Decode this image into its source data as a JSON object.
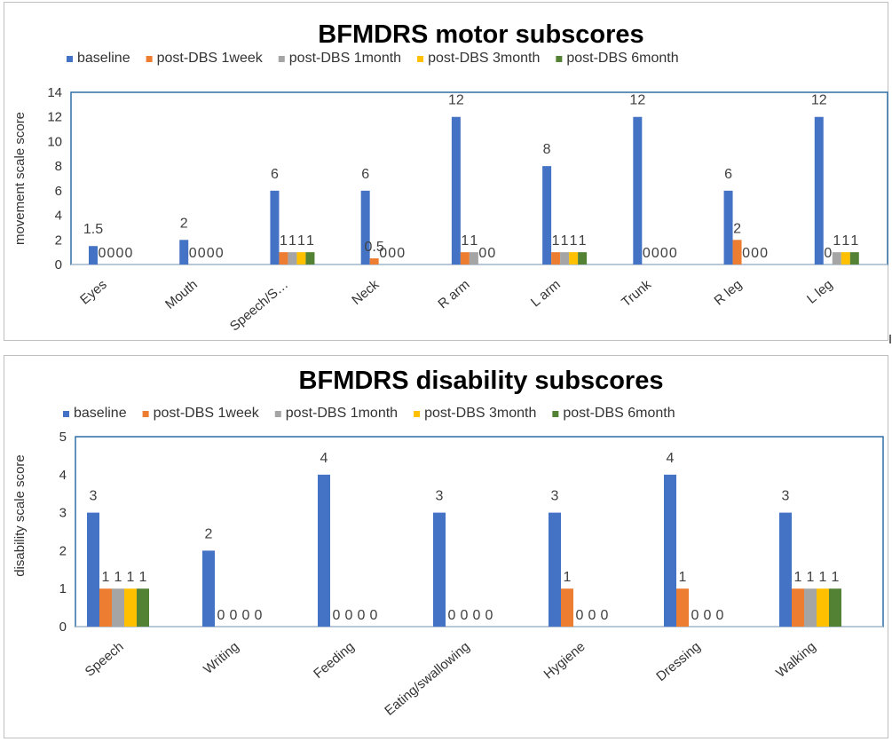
{
  "chart_data": [
    {
      "type": "bar",
      "title": "BFMDRS motor subscores",
      "xlabel": "",
      "ylabel": "movement scale score",
      "ylim": [
        0,
        14
      ],
      "yticks": [
        0,
        2,
        4,
        6,
        8,
        10,
        12,
        14
      ],
      "legend_position": "top",
      "categories": [
        "Eyes",
        "Mouth",
        "Speech/S…",
        "Neck",
        "R arm",
        "L arm",
        "Trunk",
        "R leg",
        "L leg"
      ],
      "series": [
        {
          "name": "baseline",
          "color": "#4472C4",
          "values": [
            1.5,
            2,
            6,
            6,
            12,
            8,
            12,
            6,
            12
          ]
        },
        {
          "name": "post-DBS 1week",
          "color": "#ED7D31",
          "values": [
            0,
            0,
            1,
            0.5,
            1,
            1,
            0,
            2,
            0
          ]
        },
        {
          "name": "post-DBS 1month",
          "color": "#A5A5A5",
          "values": [
            0,
            0,
            1,
            0,
            1,
            1,
            0,
            0,
            1
          ]
        },
        {
          "name": "post-DBS 3month",
          "color": "#FFC000",
          "values": [
            0,
            0,
            1,
            0,
            0,
            1,
            0,
            0,
            1
          ]
        },
        {
          "name": "post-DBS 6month",
          "color": "#548235",
          "values": [
            0,
            0,
            1,
            0,
            0,
            1,
            0,
            0,
            1
          ]
        }
      ],
      "data_labels": [
        [
          "1.5",
          "0",
          "0",
          "0",
          "0"
        ],
        [
          "2",
          "0",
          "0",
          "0",
          "0"
        ],
        [
          "6",
          "1",
          "1",
          "1",
          "1"
        ],
        [
          "6",
          "0.5",
          "0",
          "0",
          "0"
        ],
        [
          "12",
          "1",
          "1",
          "0",
          "0"
        ],
        [
          "8",
          "1",
          "1",
          "1",
          "1"
        ],
        [
          "12",
          "0",
          "0",
          "0",
          "0"
        ],
        [
          "6",
          "2",
          "0",
          "0",
          "0"
        ],
        [
          "12",
          "0",
          "1",
          "1",
          "1"
        ]
      ]
    },
    {
      "type": "bar",
      "title": "BFMDRS disability subscores",
      "xlabel": "",
      "ylabel": "disability scale score",
      "ylim": [
        0,
        5
      ],
      "yticks": [
        0,
        1,
        2,
        3,
        4,
        5
      ],
      "legend_position": "top",
      "categories": [
        "Speech",
        "Writing",
        "Feeding",
        "Eating/swallowing",
        "Hygiene",
        "Dressing",
        "Walking"
      ],
      "series": [
        {
          "name": "baseline",
          "color": "#4472C4",
          "values": [
            3,
            2,
            4,
            3,
            3,
            4,
            3
          ]
        },
        {
          "name": "post-DBS 1week",
          "color": "#ED7D31",
          "values": [
            1,
            0,
            0,
            0,
            1,
            1,
            1
          ]
        },
        {
          "name": "post-DBS 1month",
          "color": "#A5A5A5",
          "values": [
            1,
            0,
            0,
            0,
            0,
            0,
            1
          ]
        },
        {
          "name": "post-DBS 3month",
          "color": "#FFC000",
          "values": [
            1,
            0,
            0,
            0,
            0,
            0,
            1
          ]
        },
        {
          "name": "post-DBS 6month",
          "color": "#548235",
          "values": [
            1,
            0,
            0,
            0,
            0,
            0,
            1
          ]
        }
      ],
      "data_labels": [
        [
          "3",
          "1",
          "1",
          "1",
          "1"
        ],
        [
          "2",
          "0",
          "0",
          "0",
          "0"
        ],
        [
          "4",
          "0",
          "0",
          "0",
          "0"
        ],
        [
          "3",
          "0",
          "0",
          "0",
          "0"
        ],
        [
          "3",
          "1",
          "0",
          "0",
          "0"
        ],
        [
          "4",
          "1",
          "0",
          "0",
          "0"
        ],
        [
          "3",
          "1",
          "1",
          "1",
          "1"
        ]
      ]
    }
  ]
}
